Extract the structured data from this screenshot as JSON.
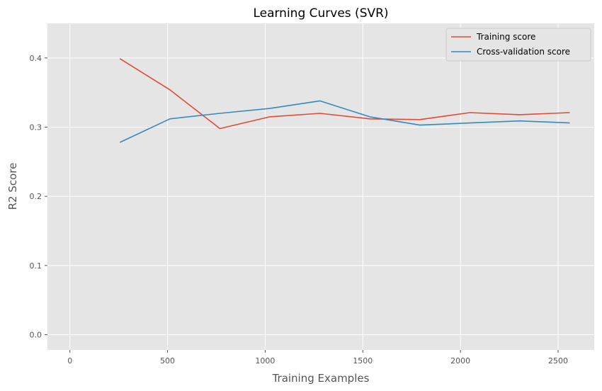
{
  "chart_data": {
    "type": "line",
    "title": "Learning Curves (SVR)",
    "xlabel": "Training Examples",
    "ylabel": "R2 Score",
    "xlim": [
      -115,
      2685
    ],
    "ylim": [
      -0.022,
      0.45
    ],
    "xticks": [
      0,
      500,
      1000,
      1500,
      2000,
      2500
    ],
    "yticks": [
      0.0,
      0.1,
      0.2,
      0.3,
      0.4
    ],
    "xtick_labels": [
      "0",
      "500",
      "1000",
      "1500",
      "2000",
      "2500"
    ],
    "ytick_labels": [
      "0.0",
      "0.1",
      "0.2",
      "0.3",
      "0.4"
    ],
    "grid": true,
    "legend_position": "top-right",
    "background": "#e5e5e5",
    "x": [
      256,
      512,
      768,
      1024,
      1280,
      1536,
      1792,
      2048,
      2304,
      2560
    ],
    "series": [
      {
        "name": "Training score",
        "color": "#e24a33",
        "values": [
          0.399,
          0.354,
          0.298,
          0.315,
          0.32,
          0.312,
          0.311,
          0.321,
          0.318,
          0.321
        ]
      },
      {
        "name": "Cross-validation score",
        "color": "#348abd",
        "values": [
          0.278,
          0.312,
          0.32,
          0.327,
          0.338,
          0.315,
          0.303,
          0.306,
          0.309,
          0.306
        ]
      }
    ]
  }
}
